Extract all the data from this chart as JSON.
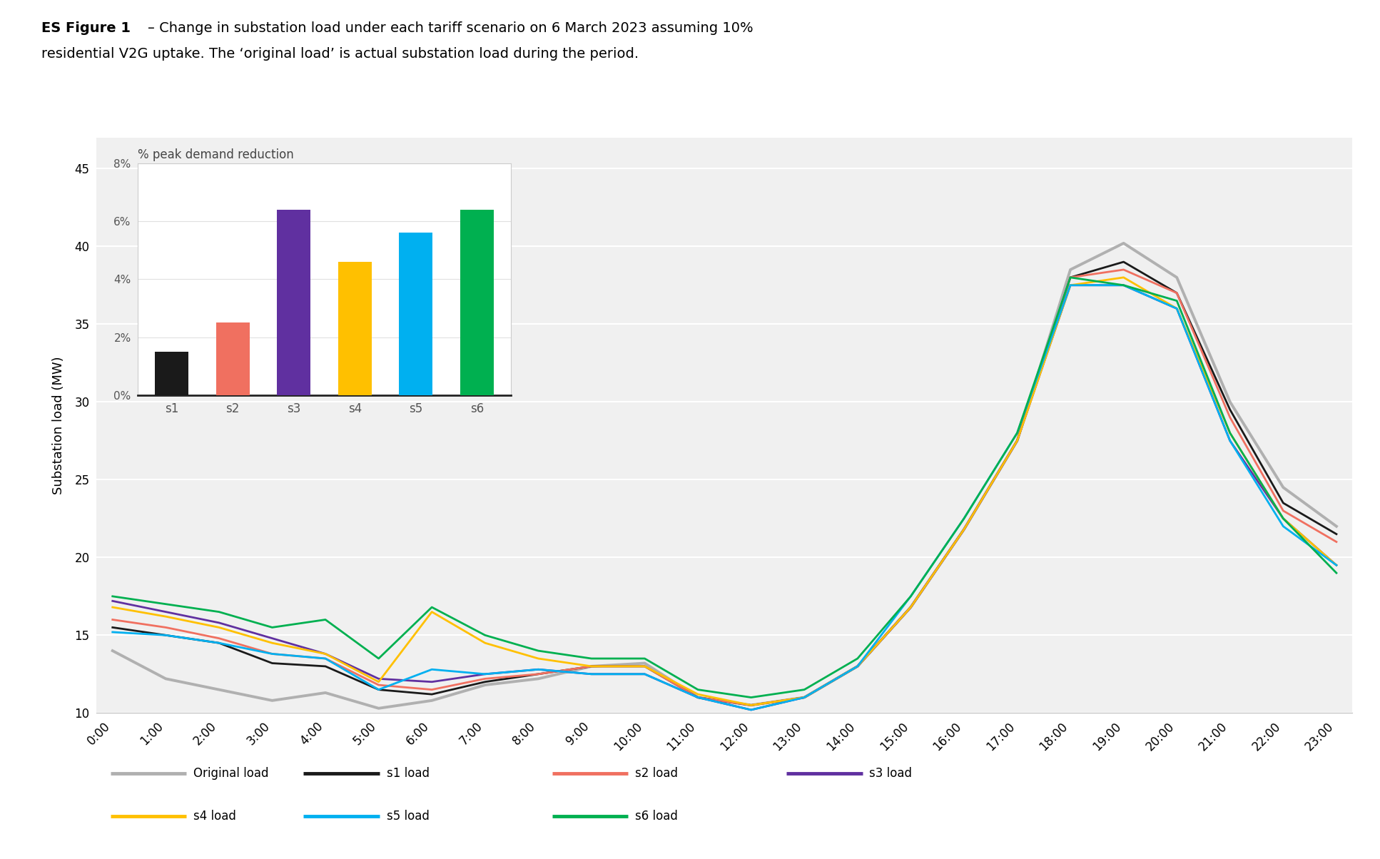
{
  "title_bold": "ES Figure 1",
  "title_rest": " – Change in substation load under each tariff scenario on 6 March 2023 assuming 10%\nresidential V2G uptake. The ‘original load’ is actual substation load during the period.",
  "ylabel": "Substation load (MW)",
  "ylim": [
    10,
    47
  ],
  "yticks": [
    10,
    15,
    20,
    25,
    30,
    35,
    40,
    45
  ],
  "hours": [
    "0:00",
    "1:00",
    "2:00",
    "3:00",
    "4:00",
    "5:00",
    "6:00",
    "7:00",
    "8:00",
    "9:00",
    "10:00",
    "11:00",
    "12:00",
    "13:00",
    "14:00",
    "15:00",
    "16:00",
    "17:00",
    "18:00",
    "19:00",
    "20:00",
    "21:00",
    "22:00",
    "23:00"
  ],
  "original": [
    14.0,
    12.2,
    11.5,
    10.8,
    11.3,
    10.3,
    10.8,
    11.8,
    12.2,
    13.0,
    13.2,
    11.0,
    10.5,
    11.0,
    13.0,
    16.8,
    21.8,
    27.5,
    38.5,
    40.2,
    38.0,
    30.0,
    24.5,
    22.0
  ],
  "s1": [
    15.5,
    15.0,
    14.5,
    13.2,
    13.0,
    11.5,
    11.2,
    12.0,
    12.5,
    13.0,
    13.0,
    11.0,
    10.5,
    11.0,
    13.0,
    16.8,
    21.8,
    27.5,
    38.0,
    39.0,
    37.0,
    29.5,
    23.5,
    21.5
  ],
  "s2": [
    16.0,
    15.5,
    14.8,
    13.8,
    13.5,
    11.8,
    11.5,
    12.2,
    12.5,
    13.0,
    13.0,
    11.0,
    10.5,
    11.0,
    13.0,
    16.8,
    21.8,
    27.5,
    38.0,
    38.5,
    37.0,
    29.0,
    23.0,
    21.0
  ],
  "s3": [
    17.2,
    16.5,
    15.8,
    14.8,
    13.8,
    12.2,
    12.0,
    12.5,
    12.8,
    12.5,
    12.5,
    11.0,
    10.2,
    11.0,
    13.0,
    16.8,
    21.8,
    27.5,
    37.5,
    37.5,
    36.0,
    27.5,
    22.5,
    19.5
  ],
  "s4": [
    16.8,
    16.2,
    15.5,
    14.5,
    13.8,
    12.0,
    16.5,
    14.5,
    13.5,
    13.0,
    13.0,
    11.2,
    10.5,
    11.0,
    13.0,
    16.8,
    21.8,
    27.5,
    37.5,
    38.0,
    36.0,
    28.0,
    22.5,
    19.5
  ],
  "s5": [
    15.2,
    15.0,
    14.5,
    13.8,
    13.5,
    11.5,
    12.8,
    12.5,
    12.8,
    12.5,
    12.5,
    11.0,
    10.2,
    11.0,
    13.0,
    17.5,
    22.5,
    28.0,
    37.5,
    37.5,
    36.0,
    27.5,
    22.0,
    19.5
  ],
  "s6": [
    17.5,
    17.0,
    16.5,
    15.5,
    16.0,
    13.5,
    16.8,
    15.0,
    14.0,
    13.5,
    13.5,
    11.5,
    11.0,
    11.5,
    13.5,
    17.5,
    22.5,
    28.0,
    38.0,
    37.5,
    36.5,
    28.0,
    22.5,
    19.0
  ],
  "colors": {
    "original": "#b0b0b0",
    "s1": "#1a1a1a",
    "s2": "#f07060",
    "s3": "#6030a0",
    "s4": "#ffc000",
    "s5": "#00b0f0",
    "s6": "#00b050"
  },
  "bar_values": [
    1.5,
    2.5,
    6.4,
    4.6,
    5.6,
    6.4
  ],
  "bar_colors": [
    "#1a1a1a",
    "#f07060",
    "#6030a0",
    "#ffc000",
    "#00b0f0",
    "#00b050"
  ],
  "bar_categories": [
    "s1",
    "s2",
    "s3",
    "s4",
    "s5",
    "s6"
  ],
  "inset_title": "% peak demand reduction",
  "background_color": "#f0f0f0"
}
